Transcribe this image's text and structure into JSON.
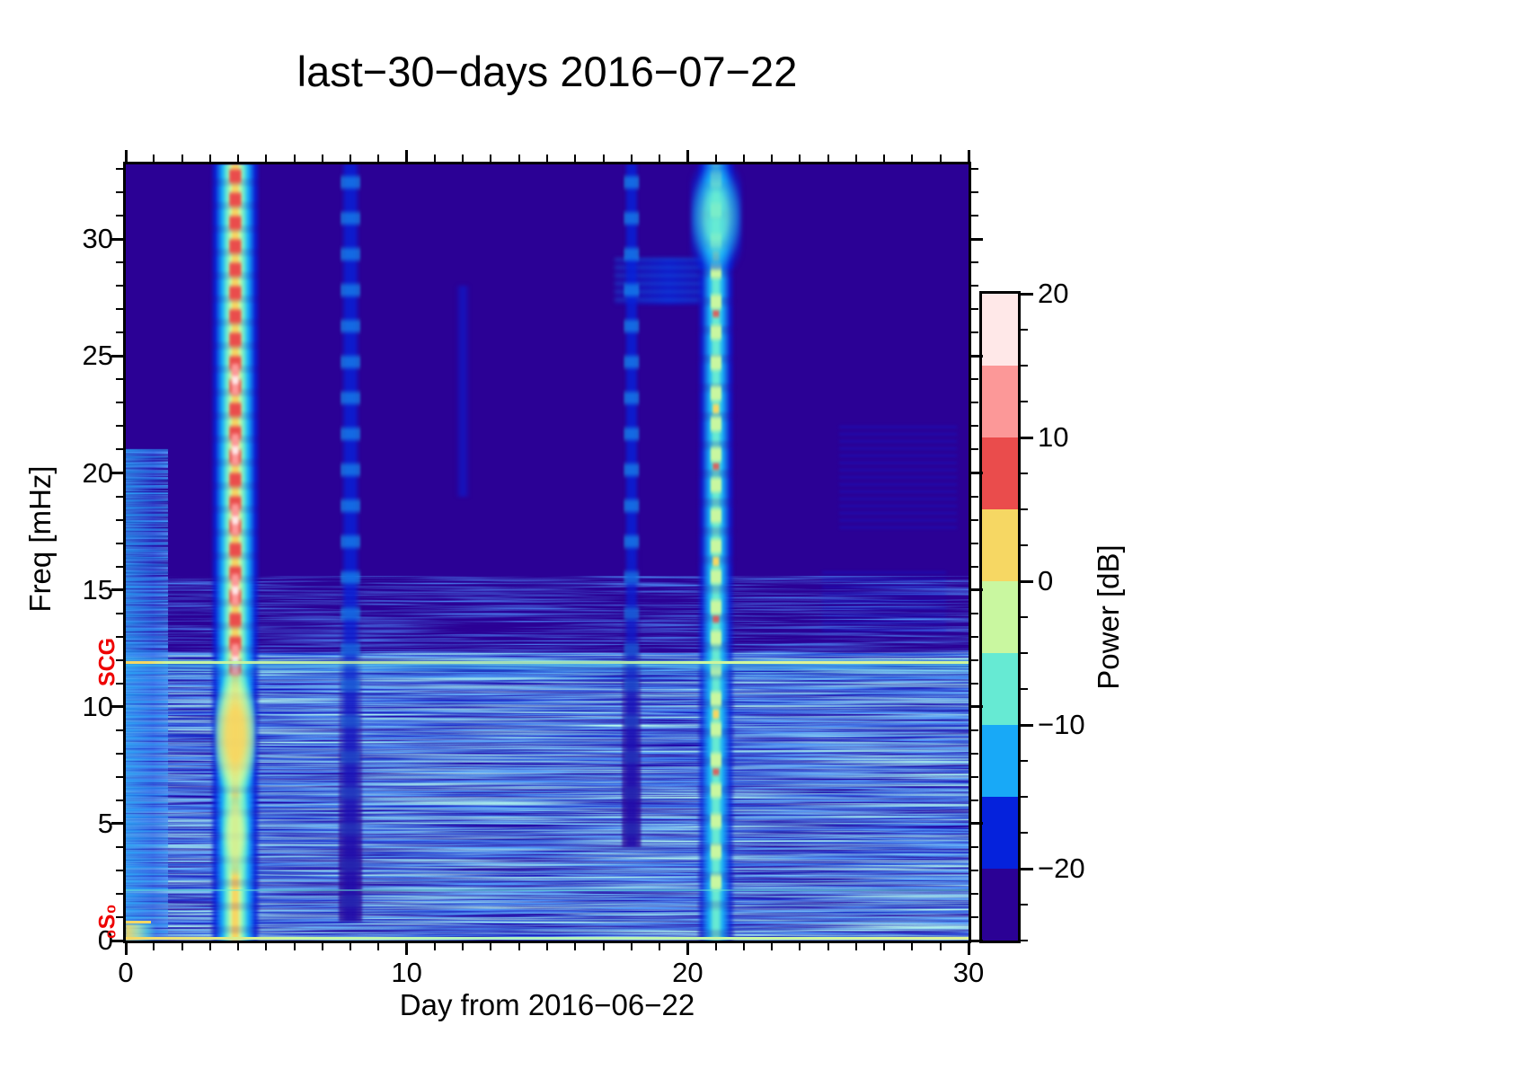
{
  "figure": {
    "title": "last−30−days 2016−07−22",
    "background_color": "#ffffff",
    "frame_color": "#000000",
    "annotation_color": "#ee0000"
  },
  "chart_data": {
    "type": "heatmap",
    "subtype": "seismic-spectrogram",
    "title": "last−30−days 2016−07−22",
    "xlabel": "Day from 2016−06−22",
    "ylabel": "Freq [mHz]",
    "xlim": [
      0,
      30
    ],
    "ylim": [
      0,
      33.2
    ],
    "x_major_ticks": [
      0,
      10,
      20,
      30
    ],
    "x_minor_interval": 1,
    "y_major_ticks": [
      0,
      5,
      10,
      15,
      20,
      25,
      30
    ],
    "y_minor_interval": 1,
    "grid": false,
    "background_power_db": -24,
    "colorbar": {
      "label": "Power [dB]",
      "range": [
        -25,
        20
      ],
      "major_ticks": [
        20,
        10,
        0,
        -10,
        -20
      ],
      "minor_interval": 2.5,
      "band_edges": [
        -25,
        -20,
        -15,
        -10,
        -5,
        0,
        5,
        10,
        15,
        20
      ],
      "band_colors": [
        "#2b0195",
        "#0522dc",
        "#18a9f7",
        "#66ead3",
        "#c9f7a0",
        "#f6d763",
        "#ea4c4c",
        "#fc9898",
        "#ffe8e8"
      ]
    },
    "annotations": [
      {
        "label": "SCG",
        "freq_mhz": 11.9,
        "color": "#ee0000"
      },
      {
        "label": "₀S₀",
        "freq_mhz": 0.8,
        "color": "#ee0000"
      }
    ],
    "events": [
      {
        "day": 3.9,
        "kind": "mainshock-normal-modes",
        "freq_low_mhz": 0,
        "freq_high_mhz": 33.2,
        "peak_power_db": 15,
        "width_days": 1.8
      },
      {
        "day": 8.0,
        "kind": "aftershock",
        "freq_low_mhz": 0.8,
        "freq_high_mhz": 33.2,
        "peak_power_db": -14,
        "width_days": 0.7
      },
      {
        "day": 12.0,
        "kind": "minor-event",
        "freq_low_mhz": 19,
        "freq_high_mhz": 28,
        "peak_power_db": -18,
        "width_days": 0.5
      },
      {
        "day": 18.0,
        "kind": "aftershock",
        "freq_low_mhz": 4,
        "freq_high_mhz": 33.2,
        "peak_power_db": -15,
        "width_days": 0.55
      },
      {
        "day": 21.0,
        "kind": "large-aftershock",
        "freq_low_mhz": 0,
        "freq_high_mhz": 33.2,
        "peak_power_db": 4,
        "width_days": 1.35
      }
    ],
    "horizontal_lines": [
      {
        "freq_mhz": 11.9,
        "kind": "scg",
        "label": "SCG calibration line",
        "power_db": -2
      },
      {
        "freq_mhz": 2.2,
        "kind": "faint",
        "power_db": -12
      },
      {
        "freq_mhz": 0.12,
        "kind": "bottom",
        "power_db": -3
      },
      {
        "freq_mhz": 0.8,
        "kind": "marker",
        "label": "₀S₀ marker",
        "day_start": 0,
        "day_end": 0.9,
        "power_db": 0
      }
    ],
    "noise_bands": [
      {
        "freq_high_mhz": 12.3,
        "freq_low_mhz": 0,
        "day_start": 0,
        "day_end": 30,
        "texture": "bright"
      },
      {
        "freq_high_mhz": 12.3,
        "freq_low_mhz": 0,
        "day_start": 0,
        "day_end": 30,
        "texture": "cyan"
      },
      {
        "freq_high_mhz": 15.6,
        "freq_low_mhz": 12.3,
        "day_start": 0,
        "day_end": 30,
        "texture": "sparse"
      },
      {
        "freq_high_mhz": 21,
        "freq_low_mhz": 0,
        "day_start": 0,
        "day_end": 1.5,
        "texture": "bright"
      }
    ],
    "patches": [
      {
        "day_start": 0,
        "day_end": 1.5,
        "freq_low_mhz": 0,
        "freq_high_mhz": 21,
        "power_db": -13,
        "kind": "startup-noise"
      },
      {
        "day_start": 17.4,
        "day_end": 20.6,
        "freq_low_mhz": 27.2,
        "freq_high_mhz": 29.2,
        "power_db": -16,
        "kind": "bridge"
      },
      {
        "day_start": 25.4,
        "day_end": 29.6,
        "freq_low_mhz": 17.5,
        "freq_high_mhz": 22,
        "power_db": -20,
        "kind": "wisp"
      },
      {
        "day_start": 24.8,
        "day_end": 29.2,
        "freq_low_mhz": 13.2,
        "freq_high_mhz": 15.8,
        "power_db": -20,
        "kind": "wisp"
      },
      {
        "day_start": 0,
        "day_end": 1.1,
        "freq_low_mhz": 0,
        "freq_high_mhz": 0.7,
        "power_db": -4,
        "kind": "hot-corner"
      }
    ]
  }
}
